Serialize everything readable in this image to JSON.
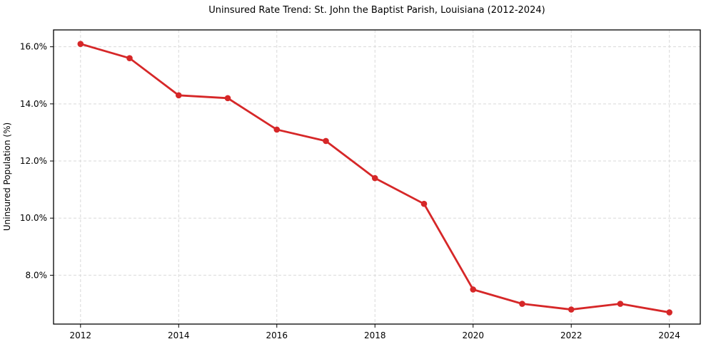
{
  "figure": {
    "title": "Uninsured Rate Trend: St. John the Baptist Parish, Louisiana (2012-2024)"
  },
  "chart_data": {
    "type": "line",
    "title": "Uninsured Rate Trend: St. John the Baptist Parish, Louisiana (2012-2024)",
    "xlabel": "",
    "ylabel": "Uninsured Population (%)",
    "x": [
      2012,
      2013,
      2014,
      2015,
      2016,
      2017,
      2018,
      2019,
      2020,
      2021,
      2022,
      2023,
      2024
    ],
    "values": [
      16.1,
      15.6,
      14.3,
      14.2,
      13.1,
      12.7,
      11.4,
      10.5,
      7.5,
      7.0,
      6.8,
      7.0,
      6.7
    ],
    "x_ticks": [
      2012,
      2014,
      2016,
      2018,
      2020,
      2022,
      2024
    ],
    "x_tick_labels": [
      "2012",
      "2014",
      "2016",
      "2018",
      "2020",
      "2022",
      "2024"
    ],
    "y_ticks": [
      8,
      10,
      12,
      14,
      16
    ],
    "y_tick_labels": [
      "8.0%",
      "10.0%",
      "12.0%",
      "14.0%",
      "16.0%"
    ],
    "xlim": [
      2011.45,
      2024.63
    ],
    "ylim": [
      6.29,
      16.59
    ],
    "grid": true,
    "legend": false,
    "line_color": "#d62728",
    "marker": "o",
    "grid_color": "#d9d9d9",
    "spine_color": "#000000",
    "background_color": "#ffffff"
  }
}
